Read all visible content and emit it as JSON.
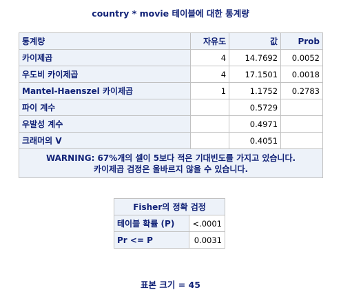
{
  "title": "country * movie 테이블에 대한 통계량",
  "stats_table": {
    "headers": [
      "통계량",
      "자유도",
      "값",
      "Prob"
    ],
    "rows": [
      {
        "label": "카이제곱",
        "df": "4",
        "value": "14.7692",
        "prob": "0.0052"
      },
      {
        "label": "우도비 카이제곱",
        "df": "4",
        "value": "17.1501",
        "prob": "0.0018"
      },
      {
        "label": "Mantel-Haenszel 카이제곱",
        "df": "1",
        "value": "1.1752",
        "prob": "0.2783"
      },
      {
        "label": "파이 계수",
        "df": "",
        "value": "0.5729",
        "prob": ""
      },
      {
        "label": "우발성 계수",
        "df": "",
        "value": "0.4971",
        "prob": ""
      },
      {
        "label": "크래머의 V",
        "df": "",
        "value": "0.4051",
        "prob": ""
      }
    ],
    "warning_line1": "WARNING: 67%개의 셀이 5보다 적은 기대빈도를 가지고 있습니다.",
    "warning_line2": "카이제곱 검정은 올바르지 않을 수 있습니다."
  },
  "fisher_table": {
    "caption": "Fisher의 정확 검정",
    "rows": [
      {
        "label": "테이블 확률 (P)",
        "value": "<.0001"
      },
      {
        "label": "Pr <= P",
        "value": "0.0031"
      }
    ]
  },
  "footer": "표본 크기 = 45",
  "colors": {
    "header_bg": "#edf2f9",
    "header_text": "#112277",
    "border": "#c1c1c1"
  }
}
